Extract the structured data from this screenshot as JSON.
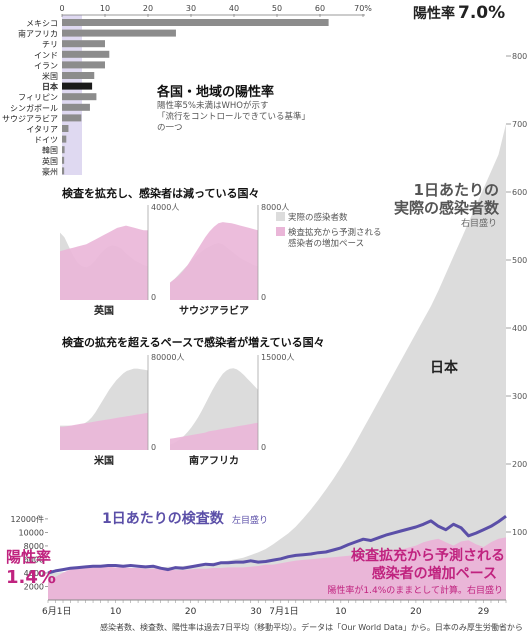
{
  "colors": {
    "gray_area": "#dcdcdc",
    "pink_area": "#eab6d8",
    "tests_line": "#5b4fa8",
    "magenta_text": "#c0237f",
    "bar_gray": "#8c8c8c",
    "bar_japan": "#1a1a1a",
    "highlight_band": "#d9d2ee"
  },
  "labels": {
    "positivity_top_label": "陽性率",
    "positivity_top_value": "7.0%",
    "positivity_left_label": "陽性率",
    "positivity_left_value": "1.4%",
    "actual_cases_title_1": "1日あたりの",
    "actual_cases_title_2": "実際の感染者数",
    "actual_cases_axis_note": "右目盛り",
    "japan_label": "日本",
    "tests_title": "1日あたりの検査数",
    "tests_axis_note": "左目盛り",
    "projected_title_1": "検査拡充から予測される",
    "projected_title_2": "感染者の増加ペース",
    "projected_note": "陽性率が1.4%のままとして計算。右目盛り",
    "footnote": "感染者数、検査数、陽性率は過去7日平均（移動平均）。データは「Our World Data」から。日本のみ厚生労働省から"
  },
  "chart_data": [
    {
      "type": "area",
      "x_ticks": [
        "6月1日",
        "10",
        "20",
        "30",
        "7月1日",
        "10",
        "20",
        "29"
      ],
      "right_axis": {
        "ticks": [
          "100",
          "200",
          "300",
          "400",
          "500",
          "600",
          "700",
          "800"
        ],
        "ylim": [
          0,
          820
        ]
      },
      "left_axis": {
        "ticks": [
          "12000件",
          "10000",
          "8000",
          "6000",
          "4000",
          "2000"
        ],
        "ylim": [
          0,
          16000
        ]
      },
      "series": [
        {
          "name": "1日あたりの実際の感染者数",
          "axis": "right",
          "style": "area-gray",
          "values": [
            38,
            40,
            41,
            42,
            42,
            43,
            44,
            44,
            45,
            46,
            46,
            47,
            47,
            48,
            48,
            48,
            49,
            49,
            50,
            51,
            52,
            53,
            55,
            56,
            58,
            60,
            62,
            66,
            70,
            75,
            82,
            90,
            98,
            108,
            120,
            133,
            147,
            162,
            178,
            195,
            213,
            232,
            252,
            272,
            292,
            312,
            332,
            352,
            372,
            392,
            412,
            432,
            455,
            480,
            505,
            530,
            555,
            580,
            605,
            630,
            655,
            700
          ]
        },
        {
          "name": "検査拡充から予測される感染者の増加ペース",
          "axis": "right",
          "style": "area-pink",
          "values": [
            30,
            34,
            40,
            45,
            48,
            49,
            50,
            50,
            49,
            48,
            48,
            47,
            47,
            46,
            46,
            47,
            45,
            44,
            44,
            45,
            46,
            46,
            47,
            47,
            48,
            48,
            48,
            49,
            50,
            52,
            52,
            54,
            56,
            58,
            59,
            60,
            61,
            62,
            63,
            64,
            65,
            66,
            67,
            68,
            69,
            70,
            72,
            74,
            77,
            80,
            85,
            88,
            90,
            85,
            80,
            86,
            88,
            82,
            78,
            85,
            90,
            92
          ]
        },
        {
          "name": "1日あたりの検査数",
          "axis": "left",
          "style": "line",
          "values": [
            4000,
            4300,
            4500,
            4700,
            4800,
            4900,
            5000,
            5000,
            5100,
            5100,
            5000,
            5100,
            5000,
            4900,
            5000,
            4700,
            4500,
            4800,
            4700,
            4900,
            5100,
            5300,
            5200,
            5500,
            5500,
            5600,
            5600,
            5800,
            5600,
            5700,
            5900,
            6100,
            6400,
            6600,
            6700,
            6800,
            7000,
            7100,
            7400,
            7700,
            8200,
            8600,
            9000,
            8800,
            9200,
            9600,
            9900,
            10200,
            10500,
            10800,
            11200,
            11700,
            10900,
            10400,
            11200,
            10700,
            9500,
            9900,
            10400,
            10900,
            11600,
            12400
          ]
        }
      ]
    },
    {
      "type": "bar",
      "title": "各国・地域の陽性率",
      "subtitle_lines": [
        "陽性率5%未満はWHOが示す",
        "「流行をコントロールできている基準」",
        "の一つ"
      ],
      "axis_ticks": [
        "0",
        "10",
        "20",
        "30",
        "40",
        "50",
        "60",
        "70%"
      ],
      "xlim": [
        0,
        70
      ],
      "categories": [
        "メキシコ",
        "南アフリカ",
        "チリ",
        "インド",
        "イラン",
        "米国",
        "日本",
        "フィリピン",
        "シンガポール",
        "サウジアラビア",
        "イタリア",
        "ドイツ",
        "韓国",
        "英国",
        "豪州"
      ],
      "values": [
        62,
        26.5,
        10,
        11,
        10,
        7.5,
        7,
        8,
        6.5,
        4.5,
        1.5,
        1,
        0.6,
        0.5,
        0.5
      ]
    },
    {
      "type": "area",
      "group_title": "検査を拡充し、感染者は減っている国々",
      "legend": [
        "実際の感染者数",
        "検査拡充から予測される感染者の増加ペース"
      ],
      "panels": [
        {
          "name": "英国",
          "axis_ticks": [
            "4000人",
            "0"
          ],
          "actual": [
            2900,
            2700,
            2300,
            1900,
            1600,
            1450,
            1400,
            1500,
            1700,
            1950,
            2150,
            2300,
            2350,
            2300,
            2200,
            2000,
            1850,
            1700,
            1600,
            1500,
            1450
          ],
          "projected": [
            2100,
            2150,
            2200,
            2250,
            2300,
            2350,
            2400,
            2500,
            2600,
            2700,
            2800,
            2900,
            3000,
            3100,
            3150,
            3200,
            3150,
            3100,
            3050,
            3000,
            3000
          ]
        },
        {
          "name": "サウジアラビア",
          "axis_ticks": [
            "8000人",
            "0"
          ],
          "actual": [
            1500,
            1800,
            2200,
            2600,
            3000,
            3400,
            3800,
            4100,
            4400,
            4600,
            4800,
            4900,
            4800,
            4500,
            4200,
            3900,
            3600,
            3400,
            3200,
            3000,
            2900
          ],
          "projected": [
            1500,
            1800,
            2100,
            2500,
            3000,
            3600,
            4200,
            4800,
            5400,
            5900,
            6300,
            6600,
            6700,
            6650,
            6600,
            6500,
            6400,
            6300,
            6200,
            6100,
            6000
          ]
        }
      ]
    },
    {
      "type": "area",
      "group_title": "検査の拡充を超えるペースで感染者が増えている国々",
      "panels": [
        {
          "name": "米国",
          "axis_ticks": [
            "80000人",
            "0"
          ],
          "actual": [
            21000,
            21000,
            21000,
            21000,
            21000,
            21500,
            22000,
            23000,
            25000,
            28000,
            32000,
            37000,
            42000,
            47000,
            52000,
            56000,
            60000,
            63000,
            66000,
            68000,
            69000,
            70000,
            70000,
            69500,
            69000,
            68500
          ],
          "projected": [
            20000,
            20000,
            20500,
            21000,
            21500,
            22000,
            22500,
            23000,
            23500,
            24000,
            24500,
            25000,
            25500,
            26000,
            26500,
            27000,
            27500,
            28000,
            28500,
            29000,
            29500,
            30000,
            30500,
            31000,
            31500,
            32000
          ]
        },
        {
          "name": "南アフリカ",
          "axis_ticks": [
            "15000人",
            "0"
          ],
          "actual": [
            900,
            1100,
            1400,
            1800,
            2300,
            2900,
            3600,
            4400,
            5300,
            6300,
            7400,
            8500,
            9600,
            10600,
            11500,
            12300,
            12800,
            13100,
            13200,
            13000,
            12600,
            12100,
            11500,
            10900,
            10300,
            9700
          ],
          "projected": [
            1800,
            1900,
            2000,
            2100,
            2200,
            2300,
            2400,
            2500,
            2600,
            2700,
            2800,
            3000,
            3100,
            3200,
            3300,
            3400,
            3500,
            3600,
            3700,
            3800,
            3900,
            4000,
            4100,
            4200,
            4300,
            4400
          ]
        }
      ]
    }
  ]
}
